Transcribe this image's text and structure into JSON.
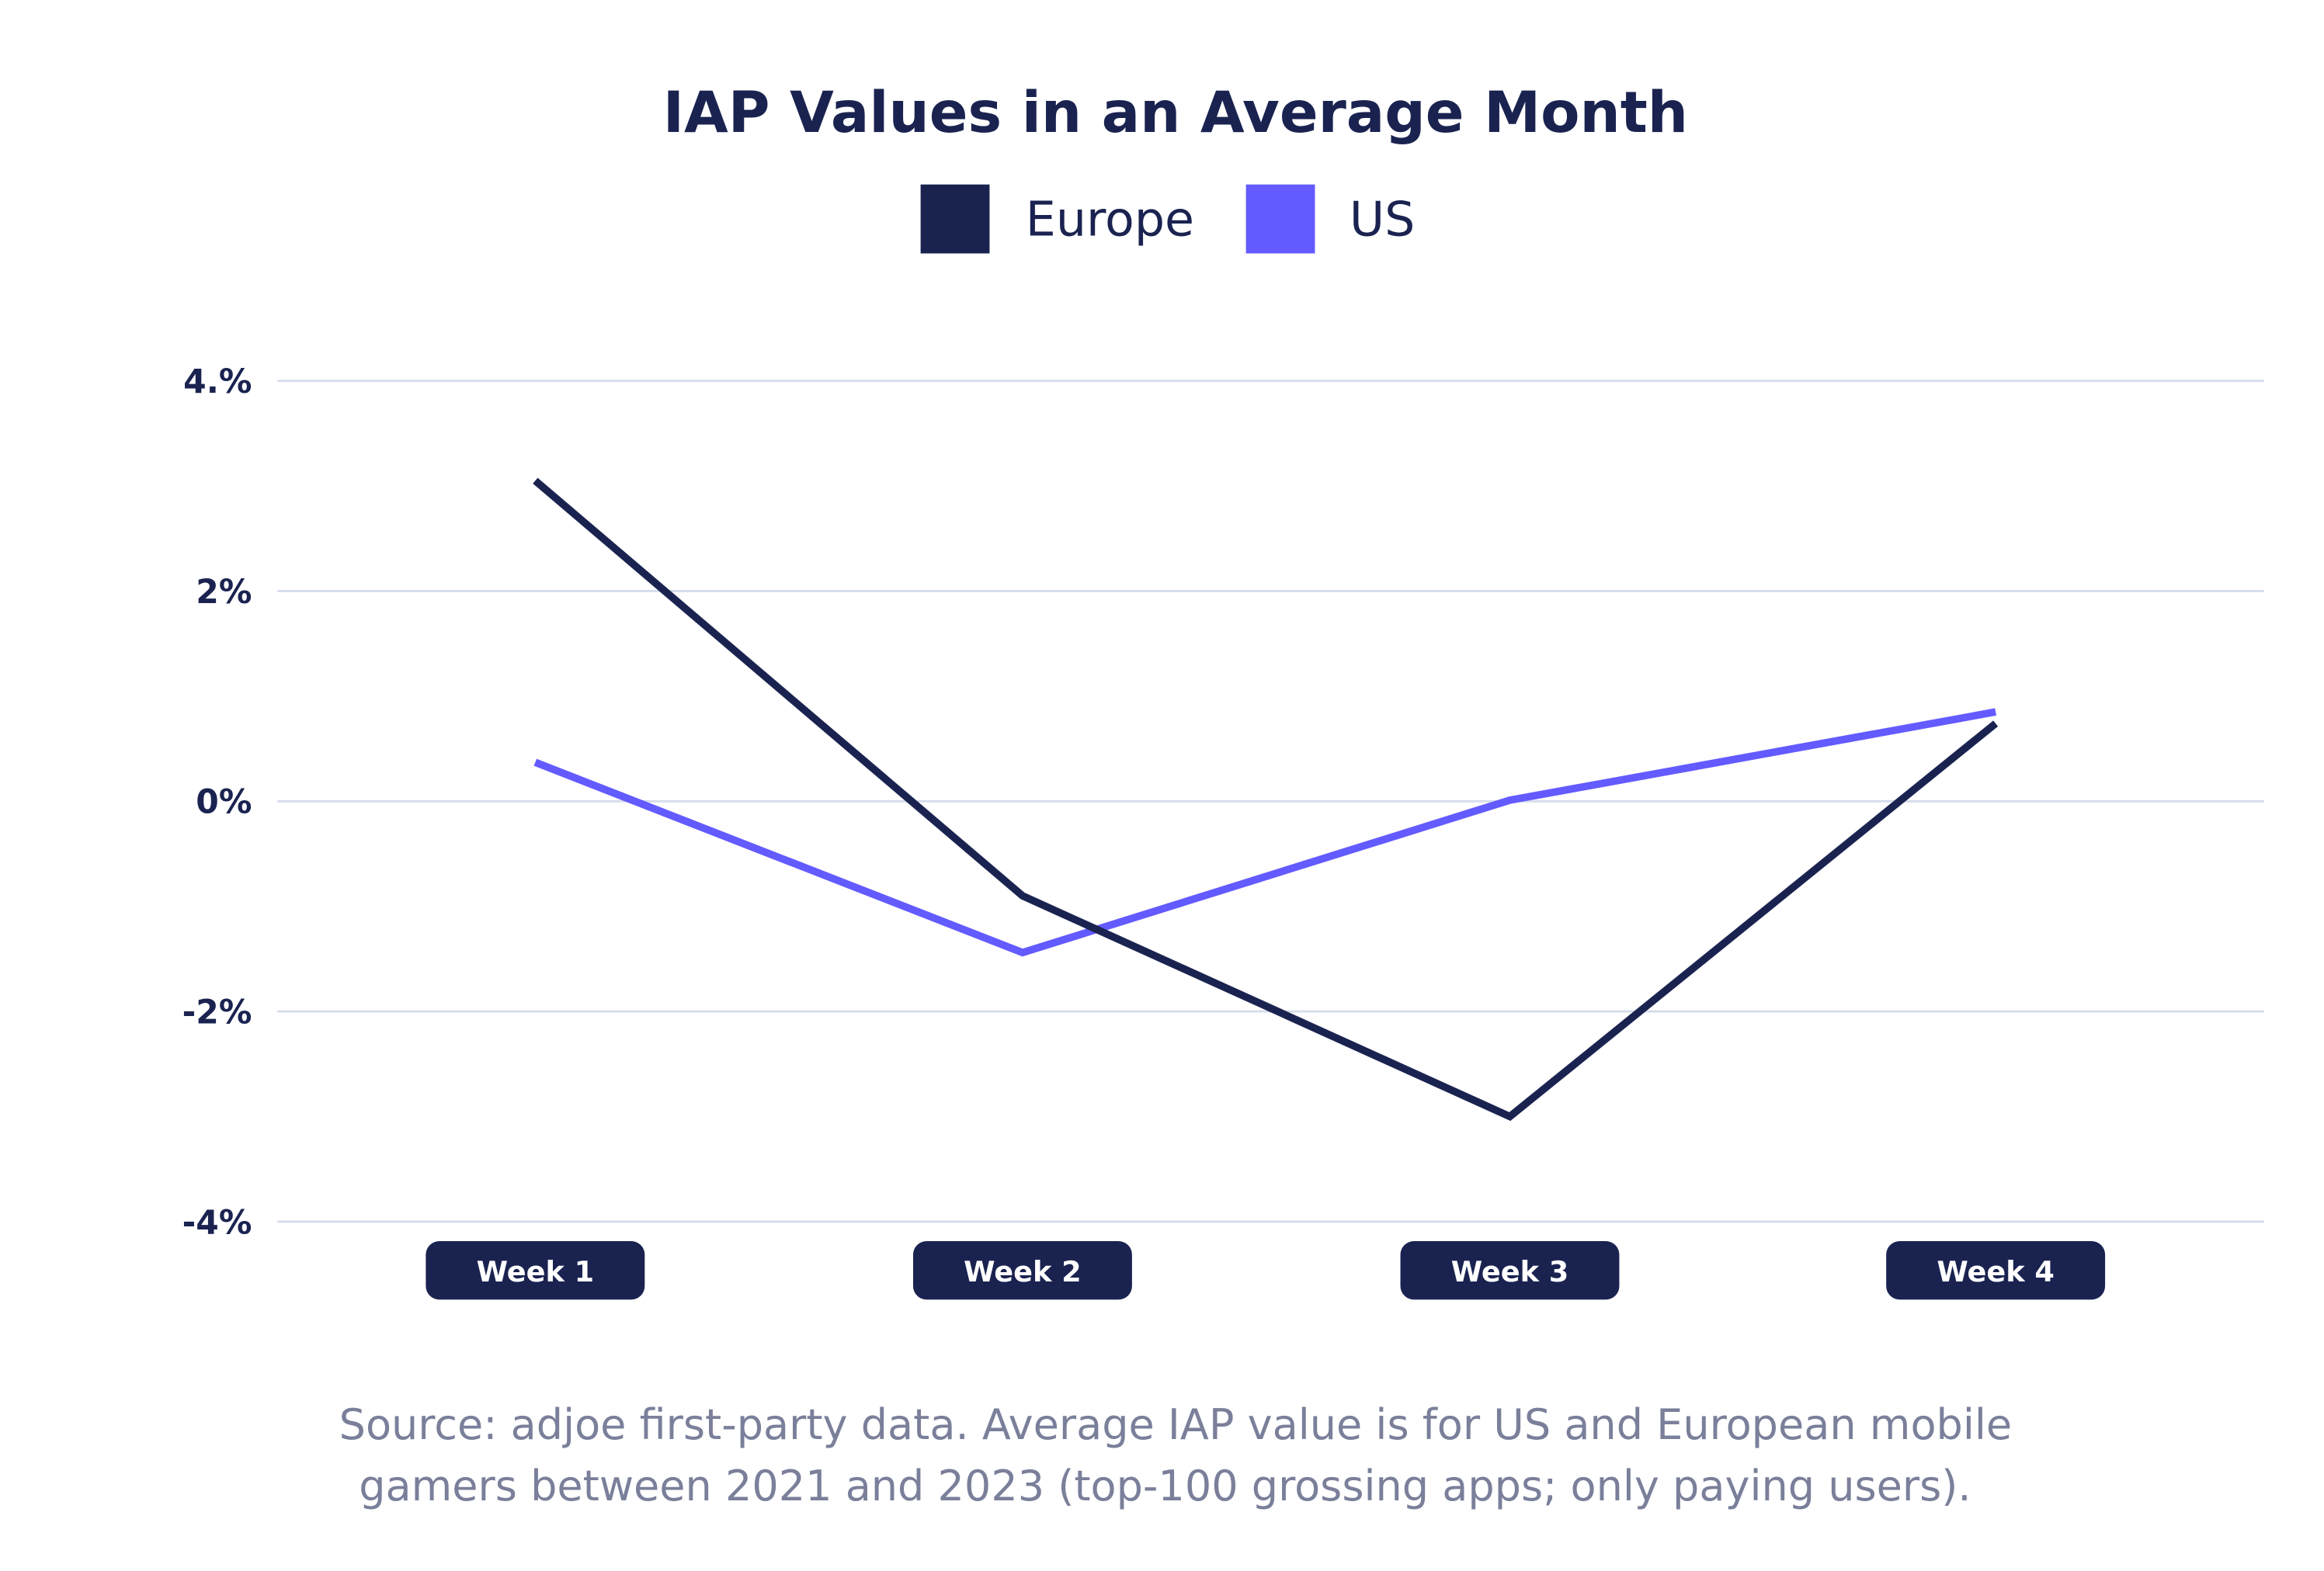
{
  "chart_data": {
    "type": "line",
    "title": "IAP Values in an Average Month",
    "categories": [
      "Week 1",
      "Week 2",
      "Week 3",
      "Week 4"
    ],
    "series": [
      {
        "name": "Europe",
        "color": "#1a2350",
        "values": [
          3.05,
          -0.9,
          -3.0,
          0.74
        ]
      },
      {
        "name": "US",
        "color": "#635bff",
        "values": [
          0.37,
          -1.44,
          0.01,
          0.85
        ]
      }
    ],
    "yticks": [
      4,
      2,
      0,
      -2,
      -4
    ],
    "ytick_labels": [
      "4.%",
      "2%",
      "0%",
      "-2%",
      "-4%"
    ],
    "ylim": [
      -4,
      4
    ],
    "grid": true,
    "legend": "top-center",
    "xlabel": "",
    "ylabel": ""
  },
  "source": {
    "line1": "Source: adjoe first-party data. Average IAP value is for US and European mobile",
    "line2": "gamers between 2021 and 2023 (top-100 grossing apps; only paying users)."
  },
  "colors": {
    "gridline": "#d5dcea",
    "label_pill": "#1a2350"
  }
}
